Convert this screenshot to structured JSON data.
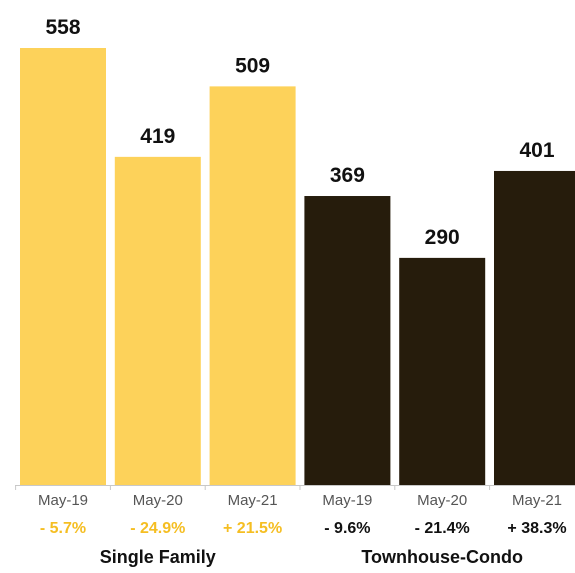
{
  "chart_data": {
    "type": "bar",
    "groups": [
      {
        "name": "Single Family",
        "color": "#FDD25A",
        "pct_color": "#F5BE22",
        "categories": [
          "May-19",
          "May-20",
          "May-21"
        ],
        "values": [
          558,
          419,
          509
        ],
        "changes": [
          "- 5.7%",
          "- 24.9%",
          "+ 21.5%"
        ]
      },
      {
        "name": "Townhouse-Condo",
        "color": "#261C0C",
        "pct_color": "#111111",
        "categories": [
          "May-19",
          "May-20",
          "May-21"
        ],
        "values": [
          369,
          290,
          401
        ],
        "changes": [
          "- 9.6%",
          "- 21.4%",
          "+ 38.3%"
        ]
      }
    ],
    "ylim": [
      0,
      600
    ],
    "grid": false
  }
}
